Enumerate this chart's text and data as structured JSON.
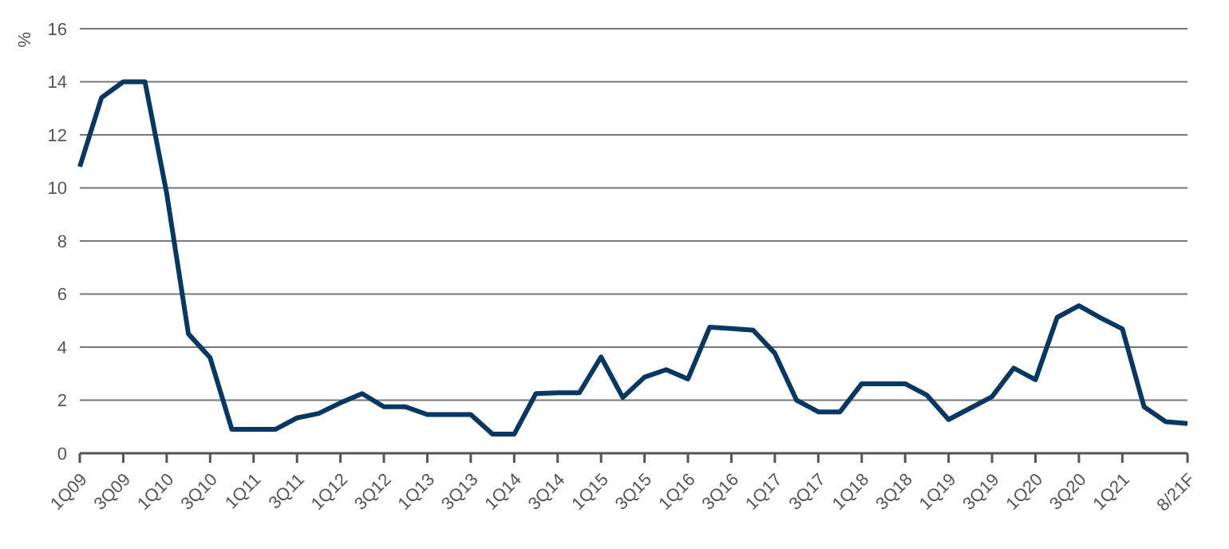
{
  "chart_data": {
    "type": "line",
    "ylabel": "%",
    "categories": [
      "1Q09",
      null,
      "3Q09",
      null,
      "1Q10",
      null,
      "3Q10",
      null,
      "1Q11",
      null,
      "3Q11",
      null,
      "1Q12",
      null,
      "3Q12",
      null,
      "1Q13",
      null,
      "3Q13",
      null,
      "1Q14",
      null,
      "3Q14",
      null,
      "1Q15",
      null,
      "3Q15",
      null,
      "1Q16",
      null,
      "3Q16",
      null,
      "1Q17",
      null,
      "3Q17",
      null,
      "1Q18",
      null,
      "3Q18",
      null,
      "1Q19",
      null,
      "3Q19",
      null,
      "1Q20",
      null,
      "3Q20",
      null,
      "1Q21",
      null,
      null,
      "8/21F"
    ],
    "series": [
      {
        "color": "#073763",
        "values": [
          10.8,
          13.4,
          14.0,
          14.0,
          9.8,
          4.5,
          3.6,
          0.9,
          0.9,
          0.9,
          1.33,
          1.5,
          1.9,
          2.25,
          1.75,
          1.75,
          1.46,
          1.46,
          1.46,
          0.72,
          0.72,
          2.25,
          2.28,
          2.28,
          3.63,
          2.1,
          2.87,
          3.15,
          2.8,
          4.75,
          4.7,
          4.64,
          3.77,
          2.0,
          1.56,
          1.56,
          2.62,
          2.62,
          2.62,
          2.19,
          1.27,
          1.7,
          2.13,
          3.21,
          2.77,
          5.12,
          5.56,
          5.1,
          4.69,
          1.75,
          1.19,
          1.12
        ]
      }
    ],
    "ylim": [
      0,
      16
    ],
    "yticks": [
      0,
      2,
      4,
      6,
      8,
      10,
      12,
      14,
      16
    ],
    "grid": "y",
    "legend": false,
    "marker": "none",
    "line_style": "solid"
  }
}
